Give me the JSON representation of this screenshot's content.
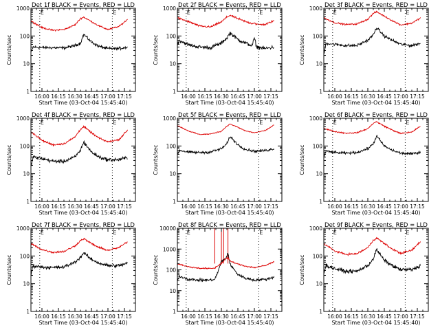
{
  "figure": {
    "start_time_label": "Start Time (03-Oct-04 15:45:40)",
    "ylabel": "Counts/sec",
    "series_colors": {
      "events": "#000000",
      "lld": "#dd0000"
    },
    "marker_label": "E"
  },
  "chart_data": [
    {
      "type": "line",
      "title": "Det 1f BLACK = Events, RED = LLD",
      "xlabel": "Start Time (03-Oct-04 15:45:40)",
      "ylabel": "Counts/sec",
      "yscale": "log",
      "ylim": [
        1,
        1000
      ],
      "xlim": [
        "15:50",
        "17:25"
      ],
      "yticks": [
        "1",
        "10",
        "100",
        "1000"
      ],
      "xticks": [
        "16:00",
        "16:15",
        "16:30",
        "16:45",
        "17:00",
        "17:15"
      ],
      "dotted_markers": [
        "15:58",
        "17:04"
      ],
      "series": [
        {
          "name": "Events",
          "color": "#000000",
          "time_min": [
            0,
            2,
            10,
            20,
            30,
            40,
            45,
            48,
            55,
            62,
            70,
            80,
            88
          ],
          "values": [
            25,
            40,
            38,
            38,
            37,
            45,
            55,
            115,
            60,
            42,
            35,
            35,
            40
          ],
          "noise": 0.08
        },
        {
          "name": "LLD",
          "color": "#dd0000",
          "time_min": [
            0,
            10,
            20,
            30,
            40,
            45,
            48,
            55,
            62,
            70,
            80,
            88
          ],
          "values": [
            350,
            200,
            160,
            170,
            250,
            420,
            480,
            330,
            230,
            170,
            220,
            400
          ],
          "noise": 0.04
        }
      ]
    },
    {
      "type": "line",
      "title": "Det 2f BLACK = Events, RED = LLD",
      "xlabel": "Start Time (03-Oct-04 15:45:40)",
      "ylabel": "Counts/sec",
      "yscale": "log",
      "ylim": [
        1,
        1000
      ],
      "xlim": [
        "15:50",
        "17:25"
      ],
      "yticks": [
        "1",
        "10",
        "100",
        "1000"
      ],
      "xticks": [
        "16:00",
        "16:15",
        "16:30",
        "16:45",
        "17:00",
        "17:15"
      ],
      "dotted_markers": [
        "15:58",
        "17:04"
      ],
      "series": [
        {
          "name": "Events",
          "color": "#000000",
          "time_min": [
            0,
            2,
            10,
            20,
            30,
            40,
            45,
            48,
            55,
            62,
            68,
            70,
            72,
            80,
            88
          ],
          "values": [
            50,
            70,
            48,
            40,
            38,
            55,
            85,
            130,
            75,
            55,
            45,
            85,
            40,
            35,
            40
          ],
          "noise": 0.1
        },
        {
          "name": "LLD",
          "color": "#dd0000",
          "time_min": [
            0,
            10,
            20,
            30,
            40,
            45,
            48,
            55,
            62,
            68,
            70,
            72,
            80,
            88
          ],
          "values": [
            450,
            330,
            230,
            210,
            320,
            480,
            560,
            420,
            330,
            280,
            300,
            260,
            260,
            360
          ],
          "noise": 0.05
        }
      ]
    },
    {
      "type": "line",
      "title": "Det 3f BLACK = Events, RED = LLD",
      "xlabel": "Start Time (03-Oct-04 15:45:40)",
      "ylabel": "Counts/sec",
      "yscale": "log",
      "ylim": [
        1,
        1000
      ],
      "xlim": [
        "15:50",
        "17:25"
      ],
      "yticks": [
        "1",
        "10",
        "100",
        "1000"
      ],
      "xticks": [
        "16:00",
        "16:15",
        "16:30",
        "16:45",
        "17:00",
        "17:15"
      ],
      "dotted_markers": [
        "15:58",
        "17:04"
      ],
      "series": [
        {
          "name": "Events",
          "color": "#000000",
          "time_min": [
            0,
            2,
            10,
            20,
            30,
            40,
            45,
            48,
            55,
            62,
            70,
            80,
            88
          ],
          "values": [
            20,
            55,
            50,
            45,
            45,
            70,
            110,
            200,
            100,
            70,
            50,
            45,
            55
          ],
          "noise": 0.08
        },
        {
          "name": "LLD",
          "color": "#dd0000",
          "time_min": [
            0,
            10,
            20,
            30,
            40,
            45,
            48,
            55,
            62,
            70,
            80,
            88
          ],
          "values": [
            450,
            300,
            260,
            270,
            400,
            650,
            750,
            520,
            360,
            250,
            290,
            450
          ],
          "noise": 0.04
        }
      ]
    },
    {
      "type": "line",
      "title": "Det 4f BLACK = Events, RED = LLD",
      "xlabel": "Start Time (03-Oct-04 15:45:40)",
      "ylabel": "Counts/sec",
      "yscale": "log",
      "ylim": [
        1,
        1000
      ],
      "xlim": [
        "15:50",
        "17:25"
      ],
      "yticks": [
        "1",
        "10",
        "100",
        "1000"
      ],
      "xticks": [
        "16:00",
        "16:15",
        "16:30",
        "16:45",
        "17:00",
        "17:15"
      ],
      "dotted_markers": [
        "15:58",
        "17:04"
      ],
      "series": [
        {
          "name": "Events",
          "color": "#000000",
          "time_min": [
            0,
            2,
            10,
            20,
            30,
            40,
            45,
            48,
            55,
            62,
            70,
            80,
            88
          ],
          "values": [
            18,
            40,
            35,
            28,
            28,
            40,
            70,
            140,
            60,
            40,
            32,
            32,
            38
          ],
          "noise": 0.1
        },
        {
          "name": "LLD",
          "color": "#dd0000",
          "time_min": [
            0,
            10,
            20,
            30,
            40,
            45,
            48,
            55,
            62,
            70,
            80,
            88
          ],
          "values": [
            330,
            160,
            110,
            120,
            210,
            400,
            500,
            300,
            190,
            140,
            170,
            380
          ],
          "noise": 0.05
        }
      ]
    },
    {
      "type": "line",
      "title": "Det 5f BLACK = Events, RED = LLD",
      "xlabel": "Start Time (03-Oct-04 15:45:40)",
      "ylabel": "Counts/sec",
      "yscale": "log",
      "ylim": [
        1,
        1000
      ],
      "xlim": [
        "15:50",
        "17:25"
      ],
      "yticks": [
        "1",
        "10",
        "100",
        "1000"
      ],
      "xticks": [
        "16:00",
        "16:15",
        "16:30",
        "16:45",
        "17:00",
        "17:15"
      ],
      "dotted_markers": [
        "17:04"
      ],
      "series": [
        {
          "name": "Events",
          "color": "#000000",
          "time_min": [
            0,
            2,
            10,
            20,
            30,
            40,
            45,
            48,
            55,
            62,
            70,
            80,
            88
          ],
          "values": [
            50,
            70,
            60,
            58,
            60,
            80,
            120,
            220,
            110,
            75,
            65,
            68,
            80
          ],
          "noise": 0.07
        },
        {
          "name": "LLD",
          "color": "#dd0000",
          "time_min": [
            0,
            10,
            20,
            30,
            40,
            45,
            48,
            55,
            62,
            70,
            80,
            88
          ],
          "values": [
            550,
            350,
            260,
            270,
            340,
            520,
            620,
            470,
            350,
            300,
            360,
            580
          ],
          "noise": 0.025
        }
      ]
    },
    {
      "type": "line",
      "title": "Det 6f BLACK = Events, RED = LLD",
      "xlabel": "Start Time (03-Oct-04 15:45:40)",
      "ylabel": "Counts/sec",
      "yscale": "log",
      "ylim": [
        1,
        1000
      ],
      "xlim": [
        "15:50",
        "17:25"
      ],
      "yticks": [
        "1",
        "10",
        "100",
        "1000"
      ],
      "xticks": [
        "16:00",
        "16:15",
        "16:30",
        "16:45",
        "17:00",
        "17:15"
      ],
      "dotted_markers": [
        "15:58",
        "17:04"
      ],
      "series": [
        {
          "name": "Events",
          "color": "#000000",
          "time_min": [
            0,
            2,
            10,
            20,
            30,
            40,
            45,
            48,
            55,
            62,
            70,
            80,
            88
          ],
          "values": [
            40,
            65,
            58,
            55,
            58,
            80,
            120,
            230,
            100,
            70,
            55,
            52,
            60
          ],
          "noise": 0.07
        },
        {
          "name": "LLD",
          "color": "#dd0000",
          "time_min": [
            0,
            10,
            20,
            30,
            40,
            45,
            48,
            55,
            62,
            70,
            80,
            88
          ],
          "values": [
            430,
            330,
            290,
            300,
            420,
            660,
            750,
            520,
            380,
            280,
            320,
            520
          ],
          "noise": 0.035
        }
      ]
    },
    {
      "type": "line",
      "title": "Det 7f BLACK = Events, RED = LLD",
      "xlabel": "Start Time (03-Oct-04 15:45:40)",
      "ylabel": "Counts/sec",
      "yscale": "log",
      "ylim": [
        1,
        1000
      ],
      "xlim": [
        "15:50",
        "17:25"
      ],
      "yticks": [
        "1",
        "10",
        "100",
        "1000"
      ],
      "xticks": [
        "16:00",
        "16:15",
        "16:30",
        "16:45",
        "17:00",
        "17:15"
      ],
      "dotted_markers": [
        "15:58",
        "17:04"
      ],
      "series": [
        {
          "name": "Events",
          "color": "#000000",
          "time_min": [
            0,
            2,
            10,
            20,
            30,
            40,
            45,
            48,
            55,
            62,
            70,
            80,
            88
          ],
          "values": [
            20,
            45,
            40,
            38,
            40,
            60,
            90,
            130,
            75,
            55,
            45,
            45,
            55
          ],
          "noise": 0.09
        },
        {
          "name": "LLD",
          "color": "#dd0000",
          "time_min": [
            0,
            10,
            20,
            30,
            40,
            45,
            48,
            55,
            62,
            70,
            80,
            88
          ],
          "values": [
            280,
            170,
            135,
            145,
            230,
            360,
            420,
            280,
            200,
            160,
            200,
            330
          ],
          "noise": 0.05
        }
      ]
    },
    {
      "type": "line",
      "title": "Det 8f BLACK = Events, RED = LLD",
      "xlabel": "Start Time (03-Oct-04 15:45:40)",
      "ylabel": "Counts/sec",
      "yscale": "log",
      "ylim": [
        1,
        10000
      ],
      "xlim": [
        "15:50",
        "17:25"
      ],
      "yticks": [
        "1",
        "10",
        "100",
        "1000",
        "10000"
      ],
      "xticks": [
        "16:00",
        "16:15",
        "16:30",
        "16:45",
        "17:00",
        "17:15"
      ],
      "dotted_markers": [
        "15:58",
        "17:04"
      ],
      "spikes_time_min": [
        34,
        40,
        42,
        46
      ],
      "series": [
        {
          "name": "Events",
          "color": "#000000",
          "time_min": [
            0,
            2,
            10,
            20,
            30,
            34,
            36,
            40,
            44,
            46,
            48,
            55,
            62,
            70,
            80,
            88
          ],
          "values": [
            30,
            50,
            35,
            32,
            32,
            35,
            60,
            250,
            350,
            650,
            180,
            60,
            40,
            32,
            35,
            45
          ],
          "noise": 0.1
        },
        {
          "name": "LLD",
          "color": "#dd0000",
          "time_min": [
            0,
            10,
            20,
            30,
            34,
            36,
            40,
            44,
            46,
            48,
            55,
            62,
            70,
            80,
            88
          ],
          "values": [
            200,
            140,
            120,
            115,
            120,
            150,
            200,
            350,
            400,
            260,
            190,
            150,
            130,
            160,
            250
          ],
          "noise": 0.05
        }
      ]
    },
    {
      "type": "line",
      "title": "Det 9f BLACK = Events, RED = LLD",
      "xlabel": "Start Time (03-Oct-04 15:45:40)",
      "ylabel": "Counts/sec",
      "yscale": "log",
      "ylim": [
        1,
        1000
      ],
      "xlim": [
        "15:50",
        "17:25"
      ],
      "yticks": [
        "1",
        "10",
        "100",
        "1000"
      ],
      "xticks": [
        "16:00",
        "16:15",
        "16:30",
        "16:45",
        "17:00",
        "17:15"
      ],
      "dotted_markers": [
        "15:58",
        "17:04"
      ],
      "series": [
        {
          "name": "Events",
          "color": "#000000",
          "time_min": [
            0,
            2,
            10,
            20,
            30,
            40,
            45,
            48,
            55,
            62,
            70,
            80,
            88
          ],
          "values": [
            25,
            45,
            35,
            28,
            28,
            45,
            80,
            170,
            70,
            45,
            32,
            32,
            45
          ],
          "noise": 0.1
        },
        {
          "name": "LLD",
          "color": "#dd0000",
          "time_min": [
            0,
            10,
            20,
            30,
            40,
            45,
            48,
            55,
            62,
            70,
            80,
            88
          ],
          "values": [
            280,
            150,
            115,
            120,
            200,
            370,
            450,
            280,
            180,
            125,
            160,
            340
          ],
          "noise": 0.05
        }
      ]
    }
  ]
}
